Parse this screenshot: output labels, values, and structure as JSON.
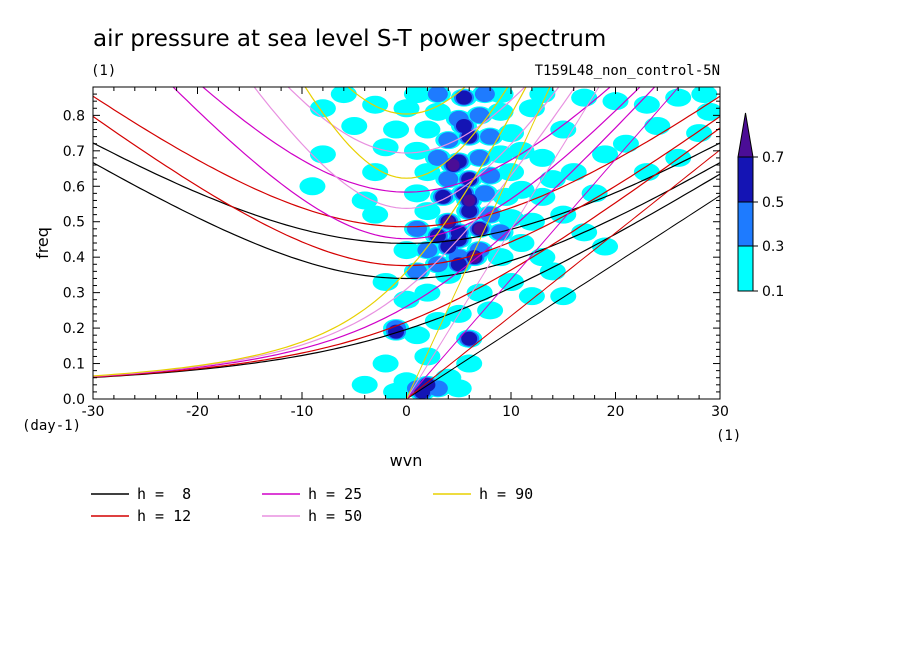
{
  "chart_data": {
    "type": "heatmap",
    "title": "air pressure at sea level S-T power spectrum",
    "units_label": "(1)",
    "run_label": "T159L48_non_control-5N",
    "xlabel": "wvn",
    "ylabel": "freq",
    "x_unit_label": "(1)",
    "y_unit_label": "(day-1)",
    "xlim": [
      -30,
      30
    ],
    "ylim": [
      0.0,
      0.88
    ],
    "x_ticks": [
      "-30",
      "-20",
      "-10",
      "0",
      "10",
      "20",
      "30"
    ],
    "y_ticks": [
      "0.0",
      "0.1",
      "0.2",
      "0.3",
      "0.4",
      "0.5",
      "0.6",
      "0.7",
      "0.8"
    ],
    "colorbar": {
      "levels": [
        "0.1",
        "0.3",
        "0.5",
        "0.7"
      ],
      "colors": [
        "#00ffff",
        "#1e7bff",
        "#1414b4",
        "#4b0d96"
      ]
    },
    "series": [
      {
        "name": "h =  8",
        "color": "#000000"
      },
      {
        "name": "h = 12",
        "color": "#d40000"
      },
      {
        "name": "h = 25",
        "color": "#d000c8"
      },
      {
        "name": "h = 50",
        "color": "#e890e0"
      },
      {
        "name": "h = 90",
        "color": "#e8d000"
      }
    ],
    "spectrum_cells": [
      {
        "x": 1.5,
        "y": 0.02,
        "level": 3
      },
      {
        "x": 2.0,
        "y": 0.04,
        "level": 3
      },
      {
        "x": 1.0,
        "y": 0.03,
        "level": 2
      },
      {
        "x": 3.0,
        "y": 0.03,
        "level": 2
      },
      {
        "x": 0.0,
        "y": 0.05,
        "level": 1
      },
      {
        "x": 4.0,
        "y": 0.06,
        "level": 1
      },
      {
        "x": -1.0,
        "y": 0.02,
        "level": 1
      },
      {
        "x": 5.0,
        "y": 0.03,
        "level": 1
      },
      {
        "x": -4.0,
        "y": 0.04,
        "level": 1
      },
      {
        "x": 6.0,
        "y": 0.1,
        "level": 1
      },
      {
        "x": 2.0,
        "y": 0.12,
        "level": 1
      },
      {
        "x": -2.0,
        "y": 0.1,
        "level": 1
      },
      {
        "x": -1.0,
        "y": 0.2,
        "level": 2
      },
      {
        "x": -1.0,
        "y": 0.19,
        "level": 3
      },
      {
        "x": 6.0,
        "y": 0.17,
        "level": 2
      },
      {
        "x": 6.0,
        "y": 0.17,
        "level": 3
      },
      {
        "x": 1.0,
        "y": 0.18,
        "level": 1
      },
      {
        "x": 3.0,
        "y": 0.22,
        "level": 1
      },
      {
        "x": 5.0,
        "y": 0.24,
        "level": 1
      },
      {
        "x": 8.0,
        "y": 0.25,
        "level": 1
      },
      {
        "x": 7.0,
        "y": 0.3,
        "level": 1
      },
      {
        "x": 2.0,
        "y": 0.3,
        "level": 1
      },
      {
        "x": 0.0,
        "y": 0.28,
        "level": 1
      },
      {
        "x": -2.0,
        "y": 0.33,
        "level": 1
      },
      {
        "x": 10.0,
        "y": 0.33,
        "level": 1
      },
      {
        "x": 4.0,
        "y": 0.35,
        "level": 1
      },
      {
        "x": 1.0,
        "y": 0.36,
        "level": 2
      },
      {
        "x": 3.0,
        "y": 0.38,
        "level": 2
      },
      {
        "x": 5.0,
        "y": 0.4,
        "level": 2
      },
      {
        "x": 7.0,
        "y": 0.42,
        "level": 2
      },
      {
        "x": 5.0,
        "y": 0.38,
        "level": 3
      },
      {
        "x": 6.5,
        "y": 0.4,
        "level": 4
      },
      {
        "x": 2.0,
        "y": 0.42,
        "level": 2
      },
      {
        "x": 0.0,
        "y": 0.42,
        "level": 1
      },
      {
        "x": 9.0,
        "y": 0.4,
        "level": 1
      },
      {
        "x": 11.0,
        "y": 0.44,
        "level": 1
      },
      {
        "x": 13.0,
        "y": 0.4,
        "level": 1
      },
      {
        "x": 3.0,
        "y": 0.46,
        "level": 3
      },
      {
        "x": 5.0,
        "y": 0.47,
        "level": 3
      },
      {
        "x": 7.0,
        "y": 0.48,
        "level": 4
      },
      {
        "x": 9.0,
        "y": 0.47,
        "level": 2
      },
      {
        "x": 1.0,
        "y": 0.48,
        "level": 2
      },
      {
        "x": 4.0,
        "y": 0.5,
        "level": 4
      },
      {
        "x": 6.0,
        "y": 0.53,
        "level": 3
      },
      {
        "x": 8.0,
        "y": 0.52,
        "level": 2
      },
      {
        "x": 10.0,
        "y": 0.51,
        "level": 1
      },
      {
        "x": 12.0,
        "y": 0.5,
        "level": 1
      },
      {
        "x": 2.0,
        "y": 0.53,
        "level": 1
      },
      {
        "x": 15.0,
        "y": 0.52,
        "level": 1
      },
      {
        "x": 3.5,
        "y": 0.57,
        "level": 3
      },
      {
        "x": 5.5,
        "y": 0.58,
        "level": 3
      },
      {
        "x": 7.5,
        "y": 0.58,
        "level": 2
      },
      {
        "x": 9.5,
        "y": 0.57,
        "level": 1
      },
      {
        "x": 11.0,
        "y": 0.59,
        "level": 1
      },
      {
        "x": 13.0,
        "y": 0.57,
        "level": 1
      },
      {
        "x": 1.0,
        "y": 0.58,
        "level": 1
      },
      {
        "x": 18.0,
        "y": 0.58,
        "level": 1
      },
      {
        "x": 4.0,
        "y": 0.62,
        "level": 2
      },
      {
        "x": 6.0,
        "y": 0.62,
        "level": 3
      },
      {
        "x": 8.0,
        "y": 0.63,
        "level": 2
      },
      {
        "x": 10.0,
        "y": 0.64,
        "level": 1
      },
      {
        "x": 2.0,
        "y": 0.64,
        "level": 1
      },
      {
        "x": 14.0,
        "y": 0.62,
        "level": 1
      },
      {
        "x": 16.0,
        "y": 0.64,
        "level": 1
      },
      {
        "x": -3.0,
        "y": 0.64,
        "level": 1
      },
      {
        "x": 5.0,
        "y": 0.67,
        "level": 3
      },
      {
        "x": 7.0,
        "y": 0.68,
        "level": 2
      },
      {
        "x": 3.0,
        "y": 0.68,
        "level": 2
      },
      {
        "x": 9.0,
        "y": 0.69,
        "level": 1
      },
      {
        "x": 11.0,
        "y": 0.7,
        "level": 1
      },
      {
        "x": 1.0,
        "y": 0.7,
        "level": 1
      },
      {
        "x": -2.0,
        "y": 0.71,
        "level": 1
      },
      {
        "x": 13.0,
        "y": 0.68,
        "level": 1
      },
      {
        "x": 4.0,
        "y": 0.73,
        "level": 2
      },
      {
        "x": 6.0,
        "y": 0.74,
        "level": 3
      },
      {
        "x": 8.0,
        "y": 0.74,
        "level": 2
      },
      {
        "x": 10.0,
        "y": 0.75,
        "level": 1
      },
      {
        "x": 2.0,
        "y": 0.76,
        "level": 1
      },
      {
        "x": -1.0,
        "y": 0.76,
        "level": 1
      },
      {
        "x": 15.0,
        "y": 0.76,
        "level": 1
      },
      {
        "x": -5.0,
        "y": 0.77,
        "level": 1
      },
      {
        "x": 5.0,
        "y": 0.79,
        "level": 2
      },
      {
        "x": 7.0,
        "y": 0.8,
        "level": 2
      },
      {
        "x": 3.0,
        "y": 0.81,
        "level": 1
      },
      {
        "x": 9.0,
        "y": 0.81,
        "level": 1
      },
      {
        "x": 0.0,
        "y": 0.82,
        "level": 1
      },
      {
        "x": -3.0,
        "y": 0.83,
        "level": 1
      },
      {
        "x": 12.0,
        "y": 0.82,
        "level": 1
      },
      {
        "x": 5.5,
        "y": 0.85,
        "level": 3
      },
      {
        "x": 7.5,
        "y": 0.86,
        "level": 2
      },
      {
        "x": 3.0,
        "y": 0.86,
        "level": 2
      },
      {
        "x": 9.0,
        "y": 0.86,
        "level": 1
      },
      {
        "x": 1.0,
        "y": 0.86,
        "level": 1
      },
      {
        "x": 13.0,
        "y": 0.86,
        "level": 1
      },
      {
        "x": 17.0,
        "y": 0.85,
        "level": 1
      },
      {
        "x": 20.0,
        "y": 0.84,
        "level": 1
      },
      {
        "x": 23.0,
        "y": 0.83,
        "level": 1
      },
      {
        "x": 26.0,
        "y": 0.85,
        "level": 1
      },
      {
        "x": 28.5,
        "y": 0.86,
        "level": 1
      },
      {
        "x": 24.0,
        "y": 0.77,
        "level": 1
      },
      {
        "x": 21.0,
        "y": 0.72,
        "level": 1
      },
      {
        "x": 19.0,
        "y": 0.69,
        "level": 1
      },
      {
        "x": 23.0,
        "y": 0.64,
        "level": 1
      },
      {
        "x": 26.0,
        "y": 0.68,
        "level": 1
      },
      {
        "x": 28.0,
        "y": 0.75,
        "level": 1
      },
      {
        "x": 29.0,
        "y": 0.81,
        "level": 1
      },
      {
        "x": 17.0,
        "y": 0.47,
        "level": 1
      },
      {
        "x": 19.0,
        "y": 0.43,
        "level": 1
      },
      {
        "x": 14.0,
        "y": 0.36,
        "level": 1
      },
      {
        "x": 12.0,
        "y": 0.29,
        "level": 1
      },
      {
        "x": 15.0,
        "y": 0.29,
        "level": 1
      },
      {
        "x": -8.0,
        "y": 0.82,
        "level": 1
      },
      {
        "x": -6.0,
        "y": 0.86,
        "level": 1
      },
      {
        "x": -9.0,
        "y": 0.6,
        "level": 1
      },
      {
        "x": -8.0,
        "y": 0.69,
        "level": 1
      },
      {
        "x": -3.0,
        "y": 0.52,
        "level": 1
      },
      {
        "x": -4.0,
        "y": 0.56,
        "level": 1
      },
      {
        "x": 5.0,
        "y": 0.45,
        "level": 3
      },
      {
        "x": 4.0,
        "y": 0.43,
        "level": 3
      },
      {
        "x": 6.0,
        "y": 0.56,
        "level": 4
      },
      {
        "x": 4.5,
        "y": 0.66,
        "level": 4
      },
      {
        "x": 5.5,
        "y": 0.77,
        "level": 3
      }
    ]
  }
}
